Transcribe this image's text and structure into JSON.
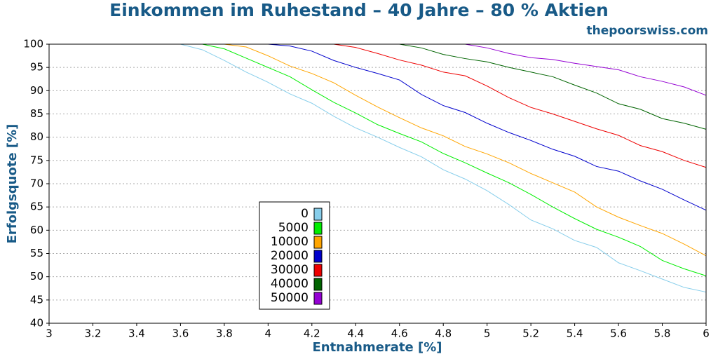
{
  "chart_data": {
    "type": "line",
    "title": "Einkommen im Ruhestand – 40 Jahre – 80 % Aktien",
    "subtitle": "thepoorswiss.com",
    "x_label": "Entnahmerate [%]",
    "y_label": "Erfolgsquote [%]",
    "x": [
      3,
      3.1,
      3.2,
      3.3,
      3.4,
      3.5,
      3.6,
      3.7,
      3.8,
      3.9,
      4,
      4.1,
      4.2,
      4.3,
      4.4,
      4.5,
      4.6,
      4.7,
      4.8,
      4.9,
      5,
      5.1,
      5.2,
      5.3,
      5.4,
      5.5,
      5.6,
      5.7,
      5.8,
      5.9,
      6
    ],
    "series": [
      {
        "name": "0",
        "color": "#87ceeb",
        "values": [
          100,
          100,
          100,
          100,
          100,
          100,
          100,
          98.8,
          96.5,
          94,
          91.8,
          89.3,
          87.3,
          84.5,
          82,
          80,
          77.8,
          75.8,
          73,
          71,
          68.5,
          65.5,
          62.2,
          60.3,
          57.8,
          56.3,
          53,
          51.3,
          49.5,
          47.7,
          46.7
        ]
      },
      {
        "name": "5000",
        "color": "#00ee00",
        "values": [
          100,
          100,
          100,
          100,
          100,
          100,
          100,
          100,
          99,
          97,
          95,
          93,
          90.2,
          87.5,
          85.2,
          82.7,
          80.8,
          79,
          76.5,
          74.5,
          72.3,
          70.2,
          67.7,
          65,
          62.5,
          60.2,
          58.5,
          56.5,
          53.5,
          51.7,
          50.2
        ]
      },
      {
        "name": "10000",
        "color": "#ffa500",
        "values": [
          100,
          100,
          100,
          100,
          100,
          100,
          100,
          100,
          100,
          99.4,
          97.5,
          95.3,
          93.7,
          91.7,
          89,
          86.5,
          84.2,
          82,
          80.3,
          78,
          76.4,
          74.5,
          72.2,
          70.2,
          68.2,
          65,
          62.8,
          61,
          59.3,
          57,
          54.5
        ]
      },
      {
        "name": "20000",
        "color": "#0000cd",
        "values": [
          100,
          100,
          100,
          100,
          100,
          100,
          100,
          100,
          100,
          100,
          100,
          99.6,
          98.5,
          96.5,
          95,
          93.7,
          92.3,
          89.2,
          86.8,
          85.3,
          83,
          81,
          79.3,
          77.4,
          75.9,
          73.7,
          72.7,
          70.6,
          68.8,
          66.5,
          64.3
        ]
      },
      {
        "name": "30000",
        "color": "#ee0000",
        "values": [
          100,
          100,
          100,
          100,
          100,
          100,
          100,
          100,
          100,
          100,
          100,
          100,
          100,
          100,
          99.3,
          98,
          96.6,
          95.5,
          94,
          93.2,
          91,
          88.5,
          86.4,
          85,
          83.4,
          81.8,
          80.4,
          78.2,
          76.9,
          75,
          73.5
        ]
      },
      {
        "name": "40000",
        "color": "#006400",
        "values": [
          100,
          100,
          100,
          100,
          100,
          100,
          100,
          100,
          100,
          100,
          100,
          100,
          100,
          100,
          100,
          100,
          100,
          99.2,
          97.8,
          96.9,
          96.2,
          95,
          94,
          93,
          91.2,
          89.5,
          87.2,
          86,
          84,
          83,
          81.7
        ]
      },
      {
        "name": "50000",
        "color": "#9400d3",
        "values": [
          100,
          100,
          100,
          100,
          100,
          100,
          100,
          100,
          100,
          100,
          100,
          100,
          100,
          100,
          100,
          100,
          100,
          100,
          100,
          100,
          99.2,
          98,
          97.1,
          96.7,
          95.9,
          95.2,
          94.5,
          93,
          92,
          90.8,
          89
        ]
      }
    ],
    "xlim": [
      3,
      6
    ],
    "ylim": [
      40,
      100
    ],
    "xticks": [
      3,
      3.2,
      3.4,
      3.6,
      3.8,
      4,
      4.2,
      4.4,
      4.6,
      4.8,
      5,
      5.2,
      5.4,
      5.6,
      5.8,
      6
    ],
    "yticks": [
      40,
      45,
      50,
      55,
      60,
      65,
      70,
      75,
      80,
      85,
      90,
      95,
      100
    ],
    "grid": true
  }
}
